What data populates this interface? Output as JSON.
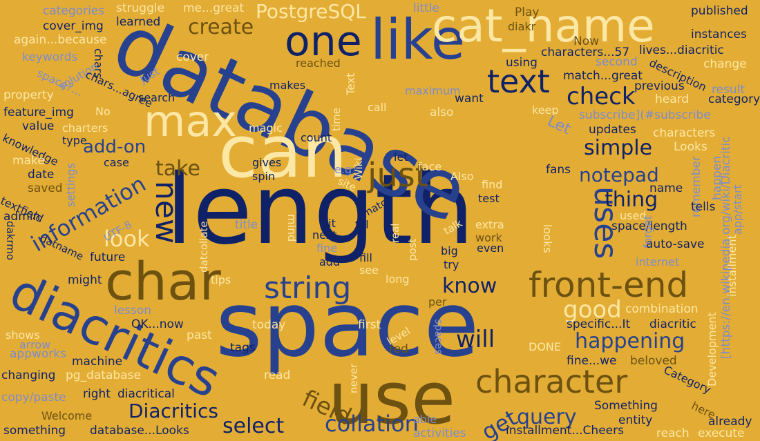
{
  "words": {
    "length": "length",
    "space": "space",
    "database": "database",
    "can": "can",
    "use": "use",
    "like": "like",
    "cat_name": "cat_name",
    "one": "one",
    "char": "char",
    "diacritics": "diacritics",
    "max": "max",
    "front_end": "front-end",
    "character": "character",
    "string": "string",
    "text": "text",
    "check": "check",
    "just": "just",
    "new": "new",
    "information": "information",
    "uses": "uses",
    "simple": "simple",
    "notepad": "notepad",
    "thing": "thing",
    "look": "look",
    "know": "know",
    "good": "good",
    "happening": "happening",
    "will": "will",
    "query": "query",
    "field": "field",
    "collation": "collation",
    "select": "select",
    "get": "get",
    "diacritics_cap": "Diacritics",
    "create": "create",
    "postgresql": "PostgreSQL",
    "add_on": "add-on",
    "take": "take",
    "categories": "categories",
    "struggle": "struggle",
    "me_great": "me...great",
    "little": "little",
    "cover_img": "cover_img",
    "learned": "learned",
    "play": "Play",
    "diakr": "diakr",
    "published": "published",
    "again_because": "again...because",
    "instances": "instances",
    "keywords": "keywords",
    "just_small": "Just",
    "cover": "cover",
    "now": "Now",
    "characters_57": "characters...57",
    "lives_diacritic": "lives...diacritic",
    "chars": "chars",
    "space_q": "space?...",
    "solution": "solution",
    "reached": "reached",
    "using": "using",
    "second": "second",
    "description": "description",
    "change": "change",
    "property": "property",
    "chars_agree": "chars...agree",
    "makes": "makes",
    "maximum": "maximum",
    "match_great": "match...great",
    "previous": "previous",
    "result": "result",
    "no": "No",
    "search": "search",
    "text_small": "Text",
    "want": "want",
    "heard": "heard",
    "category": "category",
    "feature_img": "feature_img",
    "call": "call",
    "also": "also",
    "keep": "keep",
    "subscribe": "subscribe](#subscribe",
    "value": "value",
    "charters": "charters",
    "magic": "magic",
    "time": "time",
    "let_cap": "Let",
    "updates": "updates",
    "characters": "characters",
    "type": "type",
    "count": "count",
    "looks_cap": "Looks",
    "knowledge": "knowledge",
    "make": "make",
    "case": "case",
    "let": "let",
    "eg": "e.g",
    "face": "face",
    "happen": "happen",
    "settings": "settings",
    "wiki": "Wiki",
    "date": "date",
    "gives": "gives",
    "spin": "spin",
    "site": "site",
    "also_cap": "Also",
    "fans": "fans",
    "remember": "remember",
    "wiki_link": "[https://en.wikipedia.org/wiki/Diacritic",
    "saved": "saved",
    "find": "find",
    "name": "name",
    "textfield": "textfield",
    "match": "match",
    "test": "test",
    "tells": "tells",
    "admin": "admin",
    "utf8": "UTF-8",
    "mind": "mind",
    "bit": "bit",
    "till": "till",
    "talk": "talk",
    "extra": "extra",
    "used": "used",
    "space_length": "space/length",
    "app_start": "app/start",
    "title": "title",
    "next": "next",
    "real": "real",
    "work": "work",
    "looks": "looks",
    "forget": "forget",
    "installment": "installment",
    "datcollate": "datcollate",
    "dakrmo": "dakrmo",
    "datname": "datname",
    "fine": "fine",
    "post": "post",
    "big": "big",
    "even": "even",
    "auto_save": "auto-save",
    "future": "future",
    "add": "add",
    "fill": "fill",
    "try": "try",
    "internet": "internet",
    "might": "might",
    "tips": "tips",
    "see": "see",
    "long": "long",
    "per": "per",
    "lesson": "lesson",
    "combination": "combination",
    "ok_now": "OK...now",
    "past": "past",
    "specific_it": "specific...It",
    "diacritic": "diacritic",
    "today": "today",
    "first": "first",
    "level": "level",
    "shows": "shows",
    "arrow": "arrow",
    "spaces": "spaces",
    "development": "Development",
    "appworks": "appworks",
    "tags": "tags",
    "done": "DONE",
    "red": "red",
    "machine": "machine",
    "fine_we": "fine...we",
    "beloved": "beloved",
    "changing": "changing",
    "pg_database": "pg_database",
    "read": "read",
    "category_cap": "Category",
    "never": "never",
    "here": "here",
    "copy_paste": "copy/paste",
    "right": "right",
    "diacritical": "diacritical",
    "something_cap": "Something",
    "welcome": "Welcome",
    "able": "able",
    "entity": "entity",
    "already": "already",
    "something": "something",
    "database_looks": "database...Looks",
    "activities": "activities",
    "installment_cheers": "installment...Cheers",
    "reach": "reach",
    "execute": "execute"
  }
}
